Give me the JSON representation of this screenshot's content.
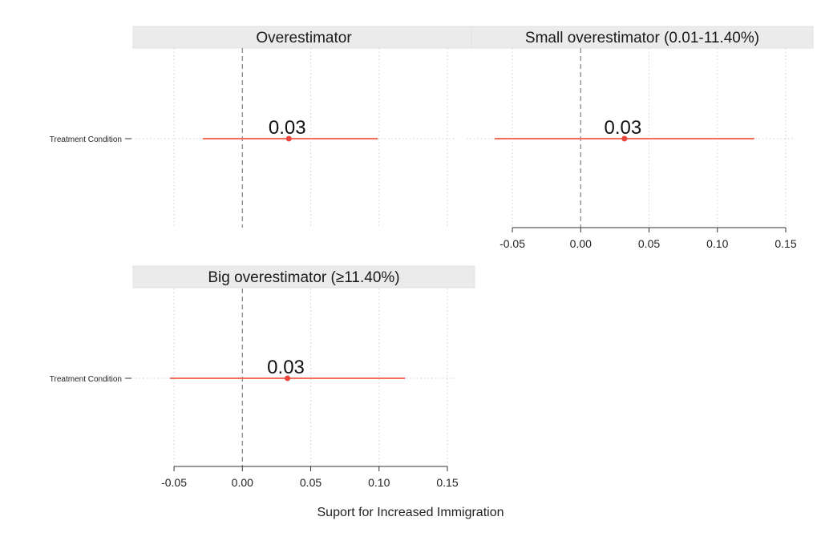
{
  "chart_data": {
    "type": "coefficient-plot",
    "xlabel": "Suport for Increased Immigration",
    "xlim": [
      -0.06,
      0.15
    ],
    "x_ticks": [
      -0.05,
      0.0,
      0.05,
      0.1,
      0.15
    ],
    "x_tick_labels": [
      "-0.05",
      "0.00",
      "0.05",
      "0.10",
      "0.15"
    ],
    "reference_line": 0,
    "grid": "vertical dotted",
    "point_color": "#e8453c",
    "line_color": "#f26b5b",
    "panels": [
      {
        "title": "Overestimator",
        "term": "Treatment Condition",
        "estimate": 0.034,
        "conf_low": -0.029,
        "conf_high": 0.099,
        "estimate_label": "0.03",
        "show_x_axis": false,
        "show_y_axis": true
      },
      {
        "title": "Small overestimator (0.01-11.40%)",
        "term": "Treatment Condition",
        "estimate": 0.032,
        "conf_low": -0.063,
        "conf_high": 0.127,
        "estimate_label": "0.03",
        "show_x_axis": true,
        "show_y_axis": false
      },
      {
        "title": "Big overestimator (≥11.40%)",
        "term": "Treatment Condition",
        "estimate": 0.033,
        "conf_low": -0.053,
        "conf_high": 0.119,
        "estimate_label": "0.03",
        "show_x_axis": true,
        "show_y_axis": true
      }
    ]
  }
}
